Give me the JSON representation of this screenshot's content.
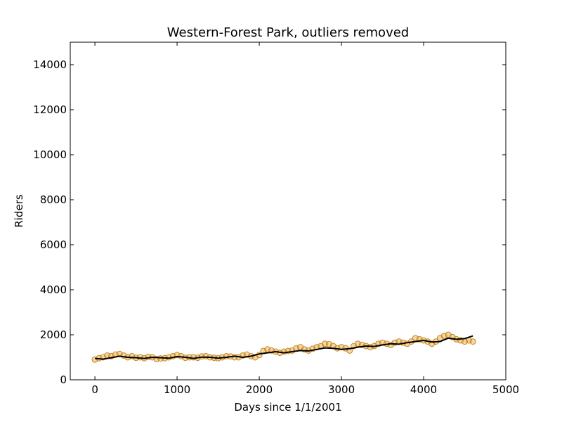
{
  "chart_data": {
    "type": "scatter",
    "title": "Western-Forest Park, outliers removed",
    "xlabel": "Days since 1/1/2001",
    "ylabel": "Riders",
    "xlim": [
      -300,
      5000
    ],
    "ylim": [
      0,
      15000
    ],
    "xticks": [
      0,
      1000,
      2000,
      3000,
      4000,
      5000
    ],
    "xtick_labels": [
      "0",
      "1000",
      "2000",
      "3000",
      "4000",
      "5000"
    ],
    "yticks": [
      0,
      2000,
      4000,
      6000,
      8000,
      10000,
      12000,
      14000
    ],
    "ytick_labels": [
      "0",
      "2000",
      "4000",
      "6000",
      "8000",
      "10000",
      "12000",
      "14000"
    ],
    "grid": false,
    "colors": {
      "points_fill": "#e8a23c",
      "points_edge": "#b87800",
      "trend": "#000000"
    },
    "series": [
      {
        "type": "scatter",
        "x": [
          0,
          50,
          100,
          150,
          200,
          250,
          300,
          350,
          400,
          450,
          500,
          550,
          600,
          650,
          700,
          750,
          800,
          850,
          900,
          950,
          1000,
          1050,
          1100,
          1150,
          1200,
          1250,
          1300,
          1350,
          1400,
          1450,
          1500,
          1550,
          1600,
          1650,
          1700,
          1750,
          1800,
          1850,
          1900,
          1950,
          2000,
          2050,
          2100,
          2150,
          2200,
          2250,
          2300,
          2350,
          2400,
          2450,
          2500,
          2550,
          2600,
          2650,
          2700,
          2750,
          2800,
          2850,
          2900,
          2950,
          3000,
          3050,
          3100,
          3150,
          3200,
          3250,
          3300,
          3350,
          3400,
          3450,
          3500,
          3550,
          3600,
          3650,
          3700,
          3750,
          3800,
          3850,
          3900,
          3950,
          4000,
          4050,
          4100,
          4150,
          4200,
          4250,
          4300,
          4350,
          4400,
          4450,
          4500,
          4550,
          4600
        ],
        "y": [
          900,
          960,
          1000,
          1080,
          1050,
          1120,
          1150,
          1080,
          1000,
          1050,
          980,
          1000,
          960,
          1020,
          1000,
          920,
          950,
          960,
          1000,
          1050,
          1100,
          1050,
          980,
          1000,
          1000,
          980,
          1040,
          1050,
          1000,
          980,
          960,
          1000,
          1050,
          1040,
          1000,
          1000,
          1080,
          1120,
          1050,
          1000,
          1100,
          1280,
          1350,
          1300,
          1250,
          1200,
          1250,
          1280,
          1300,
          1400,
          1450,
          1350,
          1300,
          1380,
          1450,
          1500,
          1600,
          1580,
          1500,
          1400,
          1450,
          1400,
          1300,
          1500,
          1600,
          1550,
          1500,
          1450,
          1500,
          1600,
          1650,
          1600,
          1550,
          1650,
          1700,
          1650,
          1600,
          1700,
          1850,
          1800,
          1750,
          1700,
          1600,
          1700,
          1850,
          1950,
          2000,
          1900,
          1800,
          1750,
          1700,
          1750,
          1700
        ]
      },
      {
        "type": "line",
        "x": [
          0,
          100,
          200,
          300,
          400,
          500,
          600,
          700,
          800,
          900,
          1000,
          1100,
          1200,
          1300,
          1400,
          1500,
          1600,
          1700,
          1800,
          1900,
          2000,
          2100,
          2200,
          2300,
          2400,
          2500,
          2600,
          2700,
          2800,
          2900,
          3000,
          3100,
          3200,
          3300,
          3400,
          3500,
          3600,
          3700,
          3800,
          3900,
          4000,
          4100,
          4200,
          4300,
          4400,
          4500,
          4600
        ],
        "y": [
          950,
          920,
          980,
          1050,
          1000,
          980,
          950,
          1000,
          980,
          960,
          1030,
          1000,
          950,
          1010,
          1000,
          960,
          1000,
          1050,
          1000,
          1050,
          1150,
          1200,
          1250,
          1200,
          1250,
          1300,
          1280,
          1350,
          1420,
          1400,
          1350,
          1380,
          1450,
          1500,
          1480,
          1550,
          1600,
          1580,
          1650,
          1700,
          1750,
          1680,
          1700,
          1850,
          1800,
          1830,
          1950
        ]
      }
    ]
  }
}
